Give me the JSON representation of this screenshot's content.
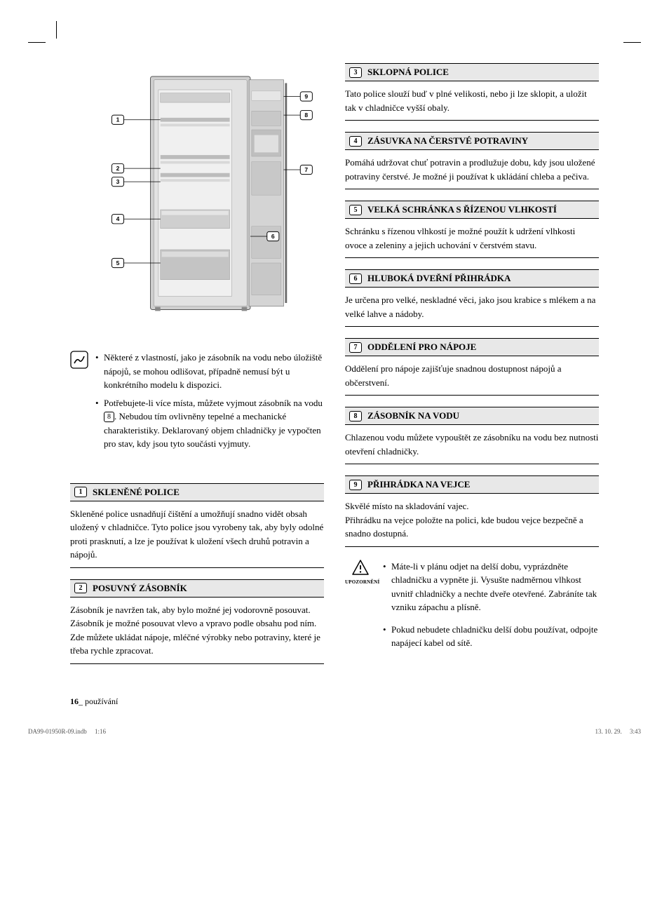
{
  "diagram": {
    "callouts": [
      "1",
      "2",
      "3",
      "4",
      "5",
      "6",
      "7",
      "8",
      "9"
    ]
  },
  "note": {
    "items": [
      "Některé z vlastností, jako je zásobník na vodu nebo úložiště nápojů, se mohou odlišovat, případně nemusí být u konkrétního modelu k dispozici.",
      "Potřebujete-li více místa, můžete vyjmout zásobník na vodu %%8%%. Nebudou tím ovlivněny tepelné a mechanické charakteristiky. Deklarovaný objem chladničky je vypočten pro stav, kdy jsou tyto součásti vyjmuty."
    ]
  },
  "left_sections": [
    {
      "num": "1",
      "title": "SKLENĚNÉ POLICE",
      "body": "Skleněné police usnadňují čištění a umožňují snadno vidět obsah uložený v chladničce. Tyto police jsou vyrobeny tak, aby byly odolné proti prasknutí, a lze je používat k uložení všech druhů potravin a nápojů."
    },
    {
      "num": "2",
      "title": "POSUVNÝ ZÁSOBNÍK",
      "body": "Zásobník je navržen tak, aby bylo možné jej vodorovně posouvat.\nZásobník je možné posouvat vlevo a vpravo podle obsahu pod ním.\nZde můžete ukládat nápoje, mléčné výrobky nebo potraviny, které je třeba rychle zpracovat."
    }
  ],
  "right_sections": [
    {
      "num": "3",
      "title": "SKLOPNÁ POLICE",
      "body": "Tato police slouží buď v plné velikosti, nebo ji lze sklopit, a uložit tak v chladničce vyšší obaly."
    },
    {
      "num": "4",
      "title": "ZÁSUVKA NA ČERSTVÉ POTRAVINY",
      "body": "Pomáhá udržovat chuť potravin a prodlužuje dobu, kdy jsou uložené potraviny čerstvé. Je možné ji používat k ukládání chleba a pečiva."
    },
    {
      "num": "5",
      "title": "VELKÁ SCHRÁNKA S ŘÍZENOU VLHKOSTÍ",
      "body": "Schránku s řízenou vlhkostí je možné použít k udržení vlhkosti ovoce a zeleniny a jejich uchování v čerstvém stavu."
    },
    {
      "num": "6",
      "title": "HLUBOKÁ DVEŘNÍ PŘIHRÁDKA",
      "body": "Je určena pro velké, neskladné věci, jako jsou krabice s mlékem a na velké lahve a nádoby."
    },
    {
      "num": "7",
      "title": "ODDĚLENÍ PRO NÁPOJE",
      "body": "Oddělení pro nápoje zajišťuje snadnou dostupnost nápojů a občerstvení."
    },
    {
      "num": "8",
      "title": "ZÁSOBNÍK NA VODU",
      "body": "Chlazenou vodu můžete vypouštět ze zásobníku na vodu bez nutnosti otevření chladničky."
    },
    {
      "num": "9",
      "title": "PŘIHRÁDKA NA VEJCE",
      "body": "Skvělé místo na skladování vajec.\nPřihrádku na vejce položte na polici, kde budou vejce bezpečně a snadno dostupná."
    }
  ],
  "warning": {
    "label": "UPOZORNĚNÍ",
    "items": [
      "Máte-li v plánu odjet na delší dobu, vyprázdněte chladničku a vypněte ji. Vysušte nadměrnou vlhkost uvnitř chladničky a nechte dveře otevřené. Zabráníte tak vzniku zápachu a plísně.",
      "Pokud nebudete chladničku delší dobu používat, odpojte napájecí kabel od sítě."
    ]
  },
  "footer": {
    "page": "16",
    "page_label": "_ používání",
    "file": "DA99-01950R-09.indb",
    "sheet": "1:16",
    "date": "13. 10. 29.",
    "time": "3:43"
  },
  "colors": {
    "header_bg": "#e8e8e8",
    "border": "#000000",
    "text": "#000000",
    "meta": "#555555",
    "fridge_light": "#d8d8d8",
    "fridge_mid": "#b8b8b8",
    "fridge_dark": "#8a8a8a"
  }
}
